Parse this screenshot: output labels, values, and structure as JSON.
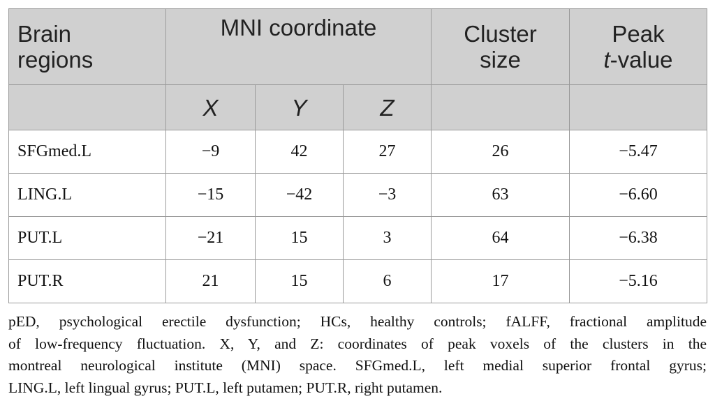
{
  "table": {
    "header": {
      "brain_regions": [
        "Brain",
        "regions"
      ],
      "mni": "MNI coordinate",
      "cluster": [
        "Cluster",
        "size"
      ],
      "peak": {
        "first": "Peak",
        "italic": "t",
        "rest": "-value"
      },
      "coords": [
        "X",
        "Y",
        "Z"
      ]
    },
    "rows": [
      [
        "SFGmed.L",
        "−9",
        "42",
        "27",
        "26",
        "−5.47"
      ],
      [
        "LING.L",
        "−15",
        "−42",
        "−3",
        "63",
        "−6.60"
      ],
      [
        "PUT.L",
        "−21",
        "15",
        "3",
        "64",
        "−6.38"
      ],
      [
        "PUT.R",
        "21",
        "15",
        "6",
        "17",
        "−5.16"
      ]
    ]
  },
  "footnote": [
    "pED, psychological erectile dysfunction; HCs, healthy controls; fALFF, fractional amplitude",
    "of low-frequency fluctuation. X, Y, and Z: coordinates of peak voxels of the clusters in the",
    "montreal neurological institute (MNI) space. SFGmed.L, left medial superior frontal gyrus;",
    "LING.L, left lingual gyrus; PUT.L, left putamen; PUT.R, right putamen."
  ]
}
